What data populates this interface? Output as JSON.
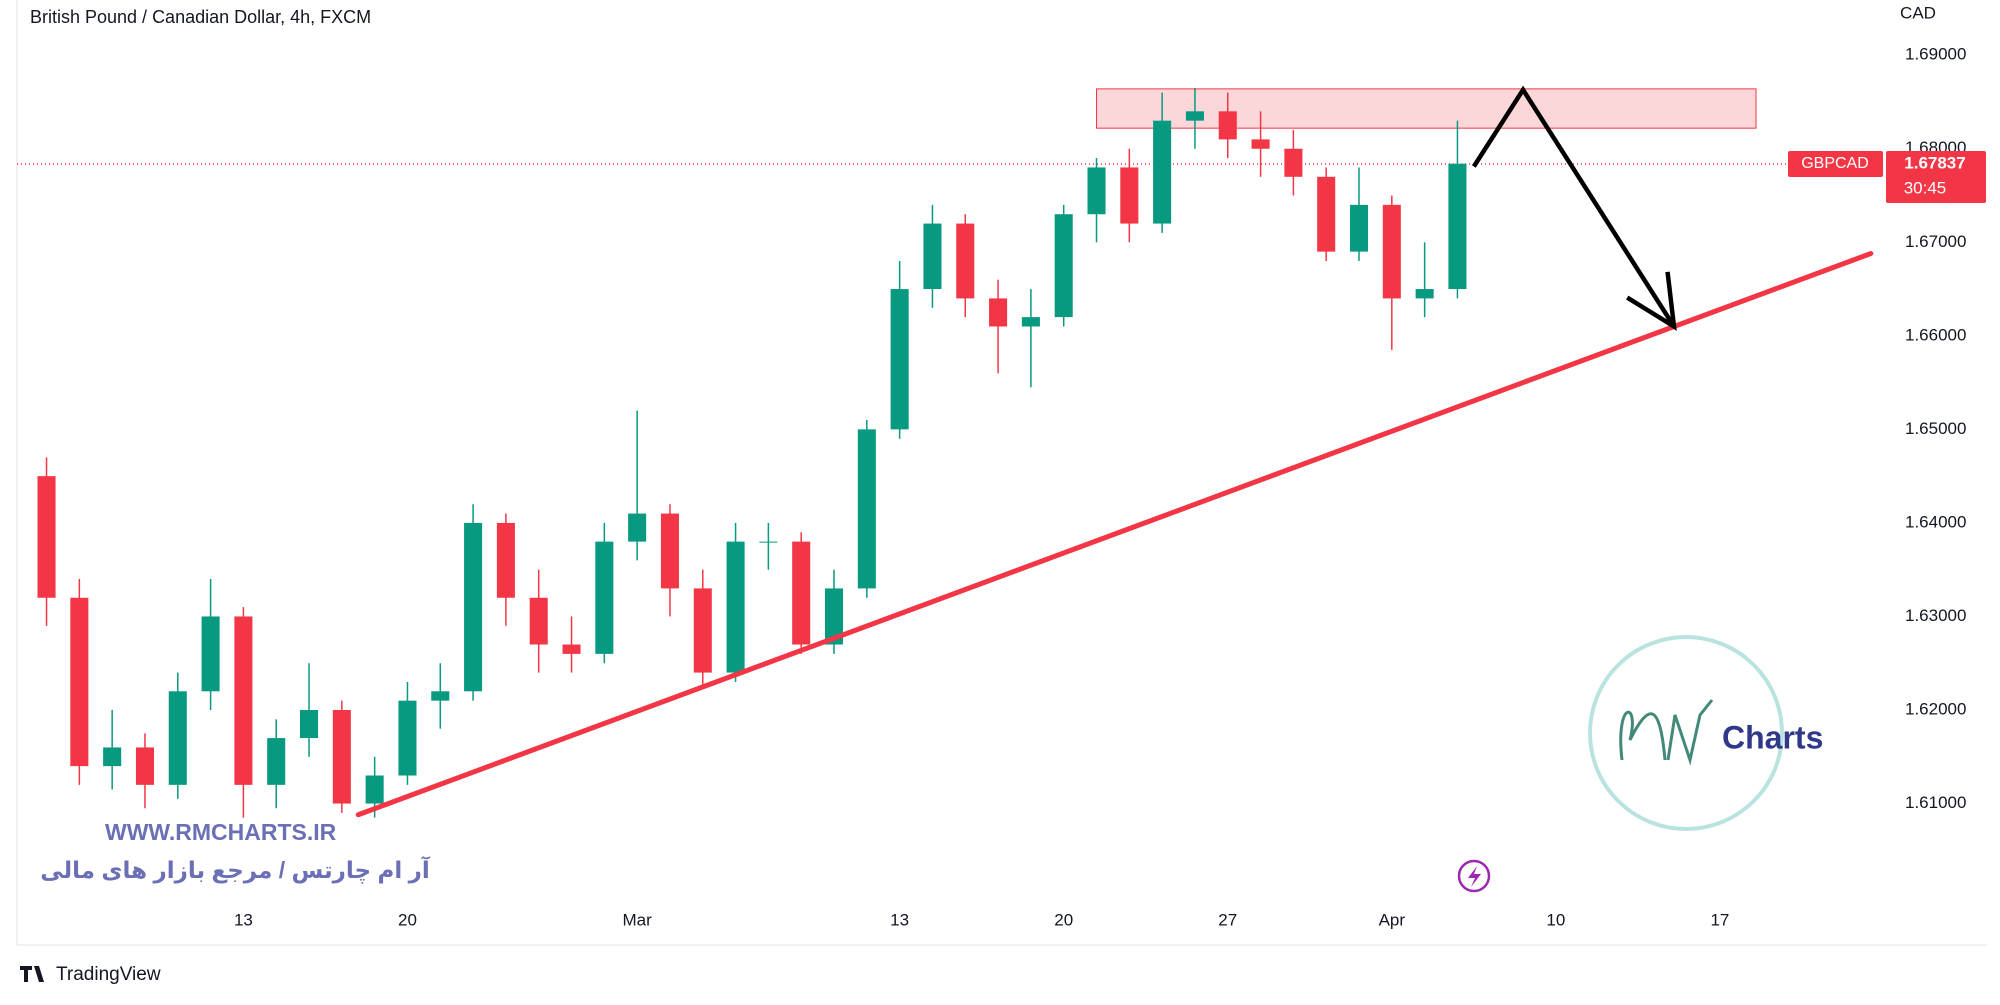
{
  "chart_data": {
    "type": "candlestick",
    "title": "British Pound / Canadian Dollar, 4h, FXCM",
    "y_axis_label": "CAD",
    "symbol": "GBPCAD",
    "countdown": "30:45",
    "last_price": 1.67837,
    "up_color": "#089981",
    "down_color": "#f23645",
    "grid": false,
    "xlim": [
      -6.9,
      50
    ],
    "ylim": [
      1.5952,
      1.6959
    ],
    "xticks": [
      {
        "value": 0,
        "label": "13"
      },
      {
        "value": 5,
        "label": "20"
      },
      {
        "value": 12,
        "label": "Mar"
      },
      {
        "value": 20,
        "label": "13"
      },
      {
        "value": 25,
        "label": "20"
      },
      {
        "value": 30,
        "label": "27"
      },
      {
        "value": 35,
        "label": "Apr"
      },
      {
        "value": 40,
        "label": "10"
      },
      {
        "value": 45,
        "label": "17"
      }
    ],
    "yticks": [
      {
        "value": 1.61,
        "label": "1.61000"
      },
      {
        "value": 1.62,
        "label": "1.62000"
      },
      {
        "value": 1.63,
        "label": "1.63000"
      },
      {
        "value": 1.64,
        "label": "1.64000"
      },
      {
        "value": 1.65,
        "label": "1.65000"
      },
      {
        "value": 1.66,
        "label": "1.66000"
      },
      {
        "value": 1.67,
        "label": "1.67000"
      },
      {
        "value": 1.68,
        "label": "1.68000"
      },
      {
        "value": 1.69,
        "label": "1.69000"
      }
    ],
    "x": [
      -6,
      -5,
      -4,
      -3,
      -2,
      -1,
      0,
      1,
      2,
      3,
      4,
      5,
      6,
      7,
      8,
      9,
      10,
      11,
      12,
      13,
      14,
      15,
      16,
      17,
      18,
      19,
      20,
      21,
      22,
      23,
      24,
      25,
      26,
      27,
      28,
      29,
      30,
      31,
      32,
      33,
      34,
      35,
      36,
      37
    ],
    "open": [
      1.645,
      1.632,
      1.614,
      1.616,
      1.612,
      1.622,
      1.63,
      1.612,
      1.617,
      1.62,
      1.61,
      1.613,
      1.621,
      1.622,
      1.64,
      1.632,
      1.627,
      1.626,
      1.638,
      1.641,
      1.633,
      1.624,
      1.638,
      1.638,
      1.627,
      1.633,
      1.65,
      1.665,
      1.672,
      1.664,
      1.661,
      1.662,
      1.673,
      1.678,
      1.672,
      1.683,
      1.684,
      1.681,
      1.68,
      1.677,
      1.669,
      1.674,
      1.664,
      1.665
    ],
    "high": [
      1.647,
      1.634,
      1.62,
      1.6175,
      1.624,
      1.634,
      1.631,
      1.619,
      1.625,
      1.621,
      1.615,
      1.623,
      1.625,
      1.642,
      1.641,
      1.635,
      1.63,
      1.64,
      1.652,
      1.642,
      1.635,
      1.64,
      1.64,
      1.639,
      1.635,
      1.651,
      1.668,
      1.674,
      1.673,
      1.666,
      1.665,
      1.674,
      1.679,
      1.68,
      1.686,
      1.6865,
      1.686,
      1.684,
      1.682,
      1.678,
      1.678,
      1.675,
      1.67,
      1.683
    ],
    "low": [
      1.629,
      1.612,
      1.6115,
      1.6095,
      1.6105,
      1.62,
      1.6085,
      1.6095,
      1.615,
      1.609,
      1.6085,
      1.612,
      1.618,
      1.621,
      1.629,
      1.624,
      1.624,
      1.625,
      1.636,
      1.63,
      1.6225,
      1.623,
      1.635,
      1.626,
      1.626,
      1.632,
      1.649,
      1.663,
      1.662,
      1.656,
      1.6545,
      1.661,
      1.67,
      1.67,
      1.671,
      1.68,
      1.679,
      1.677,
      1.675,
      1.668,
      1.668,
      1.6585,
      1.662,
      1.664
    ],
    "close": [
      1.632,
      1.614,
      1.616,
      1.612,
      1.622,
      1.63,
      1.612,
      1.617,
      1.62,
      1.61,
      1.613,
      1.621,
      1.622,
      1.64,
      1.632,
      1.627,
      1.626,
      1.638,
      1.641,
      1.633,
      1.624,
      1.638,
      1.638,
      1.627,
      1.633,
      1.65,
      1.665,
      1.672,
      1.664,
      1.661,
      1.662,
      1.673,
      1.678,
      1.672,
      1.683,
      1.684,
      1.681,
      1.68,
      1.677,
      1.669,
      1.674,
      1.664,
      1.665,
      1.6784
    ],
    "resistance_zone": {
      "x": [
        26,
        46.1
      ],
      "y": [
        1.6822,
        1.6864
      ]
    },
    "trendline": {
      "x": [
        3.5,
        49.6
      ],
      "y": [
        1.6088,
        1.6688
      ]
    },
    "arrow": {
      "x": [
        37.5,
        39,
        43.6
      ],
      "y": [
        1.6781,
        1.6863,
        1.661
      ]
    },
    "watermark": {
      "url": "WWW.RMCHARTS.IR",
      "tagline": "آر ام چارتس / مرجع بازار های مالی",
      "logo_text": "Charts"
    },
    "brand": "TradingView"
  }
}
